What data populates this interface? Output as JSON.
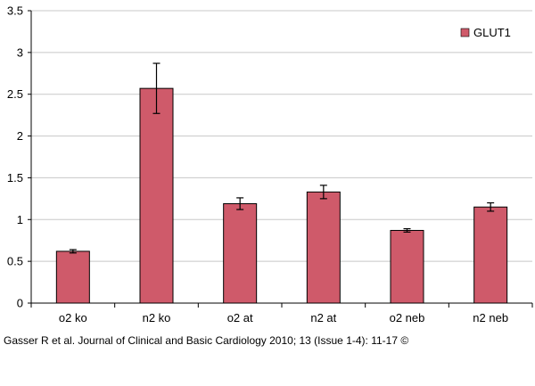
{
  "chart_data": {
    "type": "bar",
    "categories": [
      "o2 ko",
      "n2 ko",
      "o2 at",
      "n2 at",
      "o2 neb",
      "n2 neb"
    ],
    "series": [
      {
        "name": "GLUT1",
        "values": [
          0.62,
          2.57,
          1.19,
          1.33,
          0.87,
          1.15
        ],
        "errors": [
          0.02,
          0.3,
          0.07,
          0.08,
          0.02,
          0.05
        ],
        "color": "#cf5a6a"
      }
    ],
    "ylim": [
      0,
      3.5
    ],
    "yticks": [
      "0",
      "0.5",
      "1",
      "1.5",
      "2",
      "2.5",
      "3",
      "3.5"
    ],
    "ytick_values": [
      0,
      0.5,
      1,
      1.5,
      2,
      2.5,
      3,
      3.5
    ],
    "grid": true,
    "legend_position": "top-right"
  },
  "citation": "Gasser R et al. Journal of Clinical and Basic Cardiology 2010; 13 (Issue 1-4): 11-17 ©"
}
